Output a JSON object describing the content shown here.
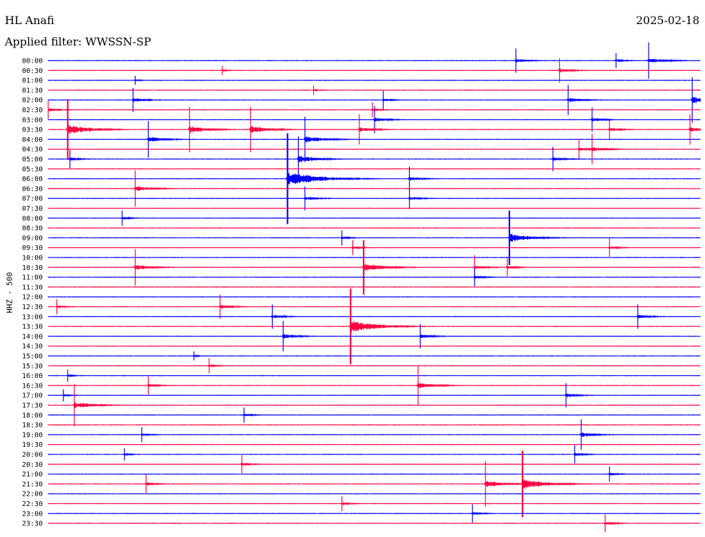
{
  "header": {
    "station": "HL Anafi",
    "filter": "Applied filter: WWSSN-SP",
    "date": "2025-02-18"
  },
  "colors": {
    "trace_a": "#0000ff",
    "trace_b": "#ff0040",
    "background": "#ffffff"
  },
  "chart_data": {
    "type": "line",
    "ylabel": "HHZ - 500",
    "trace_interval_minutes": 30,
    "rows": [
      "00:00",
      "00:30",
      "01:00",
      "01:30",
      "02:00",
      "02:30",
      "03:00",
      "03:30",
      "04:00",
      "04:30",
      "05:00",
      "05:30",
      "06:00",
      "06:30",
      "07:00",
      "07:30",
      "08:00",
      "08:30",
      "09:00",
      "09:30",
      "10:00",
      "10:30",
      "11:00",
      "11:30",
      "12:00",
      "12:30",
      "13:00",
      "13:30",
      "14:00",
      "14:30",
      "15:00",
      "15:30",
      "16:00",
      "16:30",
      "17:00",
      "17:30",
      "18:00",
      "18:30",
      "19:00",
      "19:30",
      "20:00",
      "20:30",
      "21:00",
      "21:30",
      "22:00",
      "22:30",
      "23:00",
      "23:30"
    ],
    "events": [
      {
        "row": 0,
        "minute": 21.5,
        "amp": 0.8
      },
      {
        "row": 0,
        "minute": 26.1,
        "amp": 0.5
      },
      {
        "row": 0,
        "minute": 27.6,
        "amp": 1.2
      },
      {
        "row": 1,
        "minute": 8.0,
        "amp": 0.3
      },
      {
        "row": 1,
        "minute": 23.5,
        "amp": 0.8
      },
      {
        "row": 2,
        "minute": 4.0,
        "amp": 0.3
      },
      {
        "row": 3,
        "minute": 12.2,
        "amp": 0.3
      },
      {
        "row": 4,
        "minute": 3.9,
        "amp": 0.8
      },
      {
        "row": 4,
        "minute": 15.4,
        "amp": 0.6
      },
      {
        "row": 4,
        "minute": 23.9,
        "amp": 1.0
      },
      {
        "row": 4,
        "minute": 29.6,
        "amp": 1.5
      },
      {
        "row": 5,
        "minute": 0.0,
        "amp": 0.6
      },
      {
        "row": 5,
        "minute": 14.9,
        "amp": 0.5
      },
      {
        "row": 6,
        "minute": 15.0,
        "amp": 0.9
      },
      {
        "row": 6,
        "minute": 25.0,
        "amp": 0.8
      },
      {
        "row": 7,
        "minute": 0.9,
        "amp": 2.0
      },
      {
        "row": 7,
        "minute": 6.5,
        "amp": 1.5
      },
      {
        "row": 7,
        "minute": 9.3,
        "amp": 1.5
      },
      {
        "row": 7,
        "minute": 14.3,
        "amp": 1.0
      },
      {
        "row": 7,
        "minute": 25.8,
        "amp": 0.7
      },
      {
        "row": 7,
        "minute": 29.5,
        "amp": 1.0
      },
      {
        "row": 8,
        "minute": 4.6,
        "amp": 1.2
      },
      {
        "row": 8,
        "minute": 11.8,
        "amp": 1.5
      },
      {
        "row": 9,
        "minute": 24.4,
        "amp": 0.7
      },
      {
        "row": 9,
        "minute": 25.0,
        "amp": 1.0
      },
      {
        "row": 10,
        "minute": 1.0,
        "amp": 0.6
      },
      {
        "row": 10,
        "minute": 11.5,
        "amp": 1.5
      },
      {
        "row": 10,
        "minute": 23.2,
        "amp": 0.8
      },
      {
        "row": 12,
        "minute": 11.0,
        "amp": 3.0
      },
      {
        "row": 12,
        "minute": 16.6,
        "amp": 0.8
      },
      {
        "row": 13,
        "minute": 4.0,
        "amp": 1.2
      },
      {
        "row": 14,
        "minute": 11.8,
        "amp": 0.8
      },
      {
        "row": 14,
        "minute": 16.6,
        "amp": 0.7
      },
      {
        "row": 16,
        "minute": 3.4,
        "amp": 0.5
      },
      {
        "row": 18,
        "minute": 13.5,
        "amp": 0.5
      },
      {
        "row": 18,
        "minute": 21.2,
        "amp": 1.8
      },
      {
        "row": 19,
        "minute": 14.0,
        "amp": 0.5
      },
      {
        "row": 19,
        "minute": 25.8,
        "amp": 0.6
      },
      {
        "row": 21,
        "minute": 4.0,
        "amp": 1.2
      },
      {
        "row": 21,
        "minute": 14.5,
        "amp": 1.8
      },
      {
        "row": 21,
        "minute": 19.6,
        "amp": 0.8
      },
      {
        "row": 21,
        "minute": 21.1,
        "amp": 0.6
      },
      {
        "row": 22,
        "minute": 19.6,
        "amp": 0.6
      },
      {
        "row": 25,
        "minute": 0.4,
        "amp": 0.5
      },
      {
        "row": 25,
        "minute": 7.9,
        "amp": 0.8
      },
      {
        "row": 26,
        "minute": 10.3,
        "amp": 0.8
      },
      {
        "row": 26,
        "minute": 27.1,
        "amp": 0.8
      },
      {
        "row": 27,
        "minute": 13.9,
        "amp": 2.5
      },
      {
        "row": 28,
        "minute": 10.8,
        "amp": 1.0
      },
      {
        "row": 28,
        "minute": 17.1,
        "amp": 0.8
      },
      {
        "row": 30,
        "minute": 6.7,
        "amp": 0.3
      },
      {
        "row": 31,
        "minute": 7.4,
        "amp": 0.5
      },
      {
        "row": 32,
        "minute": 0.9,
        "amp": 0.4
      },
      {
        "row": 33,
        "minute": 4.6,
        "amp": 0.6
      },
      {
        "row": 33,
        "minute": 17.0,
        "amp": 1.3
      },
      {
        "row": 34,
        "minute": 0.7,
        "amp": 0.4
      },
      {
        "row": 34,
        "minute": 23.8,
        "amp": 0.8
      },
      {
        "row": 35,
        "minute": 1.2,
        "amp": 1.4
      },
      {
        "row": 36,
        "minute": 9.0,
        "amp": 0.5
      },
      {
        "row": 38,
        "minute": 4.3,
        "amp": 0.5
      },
      {
        "row": 38,
        "minute": 24.5,
        "amp": 1.0
      },
      {
        "row": 40,
        "minute": 3.5,
        "amp": 0.4
      },
      {
        "row": 40,
        "minute": 24.2,
        "amp": 0.6
      },
      {
        "row": 41,
        "minute": 8.9,
        "amp": 0.6
      },
      {
        "row": 42,
        "minute": 25.8,
        "amp": 0.5
      },
      {
        "row": 43,
        "minute": 4.5,
        "amp": 0.6
      },
      {
        "row": 43,
        "minute": 20.1,
        "amp": 1.5
      },
      {
        "row": 43,
        "minute": 21.8,
        "amp": 2.2
      },
      {
        "row": 45,
        "minute": 13.5,
        "amp": 0.5
      },
      {
        "row": 46,
        "minute": 19.5,
        "amp": 0.6
      },
      {
        "row": 47,
        "minute": 25.6,
        "amp": 0.6
      }
    ]
  }
}
